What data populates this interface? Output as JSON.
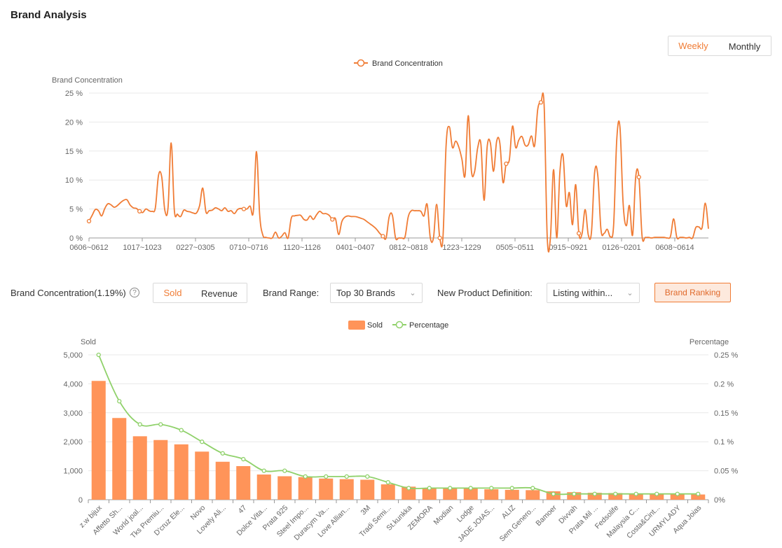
{
  "page": {
    "title": "Brand Analysis"
  },
  "period_toggle": {
    "options": [
      "Weekly",
      "Monthly"
    ],
    "selected": "Weekly"
  },
  "controls": {
    "concentration_label": "Brand Concentration(1.19%)",
    "help_icon": "?",
    "metric_options": [
      "Sold",
      "Revenue"
    ],
    "metric_selected": "Sold",
    "brand_range_label": "Brand Range:",
    "brand_range_value": "Top 30 Brands",
    "new_product_label": "New Product Definition:",
    "new_product_value": "Listing within...",
    "brand_ranking_button": "Brand Ranking",
    "chevron_icon": "chevron-down-icon"
  },
  "colors": {
    "accent": "#f07c35",
    "bar": "#ff9459",
    "line_green": "#8fd16a",
    "grid": "#e8e8e8",
    "axis_text": "#666666"
  },
  "chart_data": [
    {
      "type": "line",
      "legend": [
        "Brand Concentration"
      ],
      "legend_placement": "top-center",
      "ylabel": "Brand Concentration",
      "ylim": [
        0,
        25
      ],
      "y_ticks": [
        "0 %",
        "5 %",
        "10 %",
        "15 %",
        "20 %",
        "25 %"
      ],
      "x_tick_labels": [
        "0606~0612",
        "1017~1023",
        "0227~0305",
        "0710~0716",
        "1120~1126",
        "0401~0407",
        "0812~0818",
        "1223~1229",
        "0505~0511",
        "0915~0921",
        "0126~0201",
        "0608~0614"
      ],
      "grid": true,
      "series": [
        {
          "name": "Brand Concentration",
          "values": [
            2.9,
            3.9,
            4.9,
            4.7,
            3.8,
            5.1,
            5.9,
            5.7,
            5.3,
            5.6,
            6.1,
            6.5,
            6.6,
            5.7,
            5.2,
            5.1,
            4.6,
            4.4,
            5.0,
            4.7,
            4.6,
            5.2,
            10.8,
            10.6,
            4.8,
            5.2,
            16.4,
            4.8,
            4.1,
            3.7,
            4.8,
            4.6,
            4.5,
            4.3,
            4.3,
            5.6,
            8.6,
            4.5,
            4.7,
            4.8,
            5.2,
            5.0,
            4.7,
            5.2,
            4.6,
            4.7,
            4.2,
            4.9,
            5.1,
            5.0,
            5.0,
            5.5,
            4.5,
            14.9,
            4.0,
            0.5,
            0.1,
            0.0,
            0.0,
            1.0,
            0.0,
            0.3,
            0.9,
            0.0,
            3.4,
            3.8,
            3.9,
            3.9,
            3.2,
            3.1,
            3.8,
            3.2,
            4.0,
            4.6,
            4.2,
            4.2,
            3.9,
            3.2,
            3.3,
            0.6,
            2.8,
            3.6,
            3.8,
            3.7,
            3.7,
            3.6,
            3.4,
            3.2,
            2.8,
            2.4,
            2.0,
            1.5,
            0.8,
            0.3,
            0.0,
            3.7,
            3.9,
            0.0,
            0.0,
            0.0,
            0.2,
            3.6,
            4.7,
            4.7,
            4.7,
            4.6,
            3.8,
            5.8,
            0.0,
            0.0,
            5.8,
            0.0,
            0.0,
            16.1,
            19.2,
            15.6,
            16.7,
            15.7,
            13.6,
            10.8,
            21.1,
            11.6,
            11.4,
            15.6,
            16.2,
            6.5,
            15.8,
            16.4,
            11.5,
            16.7,
            16.4,
            9.6,
            12.8,
            13.5,
            19.3,
            15.6,
            16.9,
            17.5,
            16.0,
            16.1,
            17.6,
            15.9,
            22.2,
            23.4,
            23.0,
            0.0,
            0.0,
            11.8,
            0.0,
            11.3,
            14.2,
            5.6,
            7.8,
            2.3,
            9.2,
            0.8,
            0.7,
            4.9,
            0.5,
            1.0,
            11.3,
            10.8,
            1.4,
            0.8,
            1.5,
            0.2,
            2.2,
            17.0,
            19.2,
            6.1,
            2.1,
            5.6,
            0.5,
            10.6,
            10.5,
            0.3,
            0.1,
            0.1,
            0.0,
            0.1,
            0.1,
            0.1,
            0.1,
            0.0,
            0.3,
            3.3,
            0.1,
            0.1,
            0.1,
            0.0,
            0.1,
            0.0,
            1.8,
            1.9,
            1.8,
            6.0,
            1.6
          ]
        }
      ]
    },
    {
      "type": "bar",
      "legend": [
        "Sold",
        "Percentage"
      ],
      "legend_placement": "top-center",
      "ylabel": "Sold",
      "ylabel_right": "Percentage",
      "ylim": [
        0,
        5000
      ],
      "ylim_right": [
        0,
        0.25
      ],
      "y_ticks": [
        "0",
        "1,000",
        "2,000",
        "3,000",
        "4,000",
        "5,000"
      ],
      "y_ticks_right": [
        "0%",
        "0.05 %",
        "0.1 %",
        "0.15 %",
        "0.2 %",
        "0.25 %"
      ],
      "grid": true,
      "categories": [
        "z.w bijux",
        "Affetto Sh...",
        "World joal...",
        "Tks Premiu...",
        "D'cruz Ele...",
        "Novo",
        "Lovely Ali...",
        "47",
        "Dolce Vita...",
        "Prata 925",
        "Steel Impo...",
        "Duracym Va...",
        "Love Allian...",
        "3M",
        "Tradi Semi...",
        "St.kunkka",
        "ZEMORA",
        "Modian",
        "Lodge",
        "JADE JOIAS...",
        "ALIZ",
        "Sem Genero...",
        "Bamoer",
        "Divvah",
        "Prata Mil ...",
        "Fedsolife",
        "Malaysia C...",
        "Costa&Cint...",
        "URMYLADY",
        "Aqua Joias"
      ],
      "series": [
        {
          "name": "Sold",
          "type": "bar",
          "values": [
            4100,
            2820,
            2190,
            2060,
            1910,
            1660,
            1310,
            1160,
            870,
            810,
            780,
            730,
            710,
            690,
            530,
            450,
            400,
            400,
            390,
            360,
            340,
            330,
            290,
            260,
            240,
            230,
            200,
            200,
            200,
            180
          ]
        },
        {
          "name": "Percentage",
          "type": "line",
          "values": [
            0.25,
            0.17,
            0.13,
            0.13,
            0.12,
            0.1,
            0.08,
            0.07,
            0.05,
            0.05,
            0.04,
            0.04,
            0.04,
            0.04,
            0.03,
            0.02,
            0.02,
            0.02,
            0.02,
            0.02,
            0.02,
            0.02,
            0.01,
            0.01,
            0.01,
            0.01,
            0.01,
            0.01,
            0.01,
            0.01
          ]
        }
      ]
    }
  ]
}
